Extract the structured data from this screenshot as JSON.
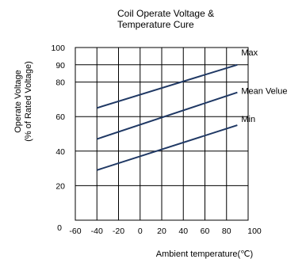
{
  "chart_data": {
    "type": "line",
    "title_line1": "Coil  Operate Voltage &",
    "title_line2": "Temperature Cure",
    "ylabel_line1": "Operate Voltage",
    "ylabel_line2": "(% of Rated Voltage)",
    "xlabel": "Ambient temperature(℃)",
    "xlim": [
      -60,
      100
    ],
    "ylim": [
      0,
      100
    ],
    "x_ticks": [
      -60,
      -40,
      -20,
      0,
      20,
      40,
      60,
      80,
      100
    ],
    "y_ticks": [
      20,
      40,
      60,
      80,
      90,
      100
    ],
    "origin_label": "0",
    "grid": true,
    "line_color": "#1f3864",
    "series": [
      {
        "name": "Max",
        "x": [
          -40,
          90
        ],
        "y": [
          65,
          90
        ]
      },
      {
        "name": "Mean Velue",
        "x": [
          -40,
          90
        ],
        "y": [
          47,
          74
        ]
      },
      {
        "name": "Min",
        "x": [
          -40,
          90
        ],
        "y": [
          29,
          55
        ]
      }
    ]
  }
}
